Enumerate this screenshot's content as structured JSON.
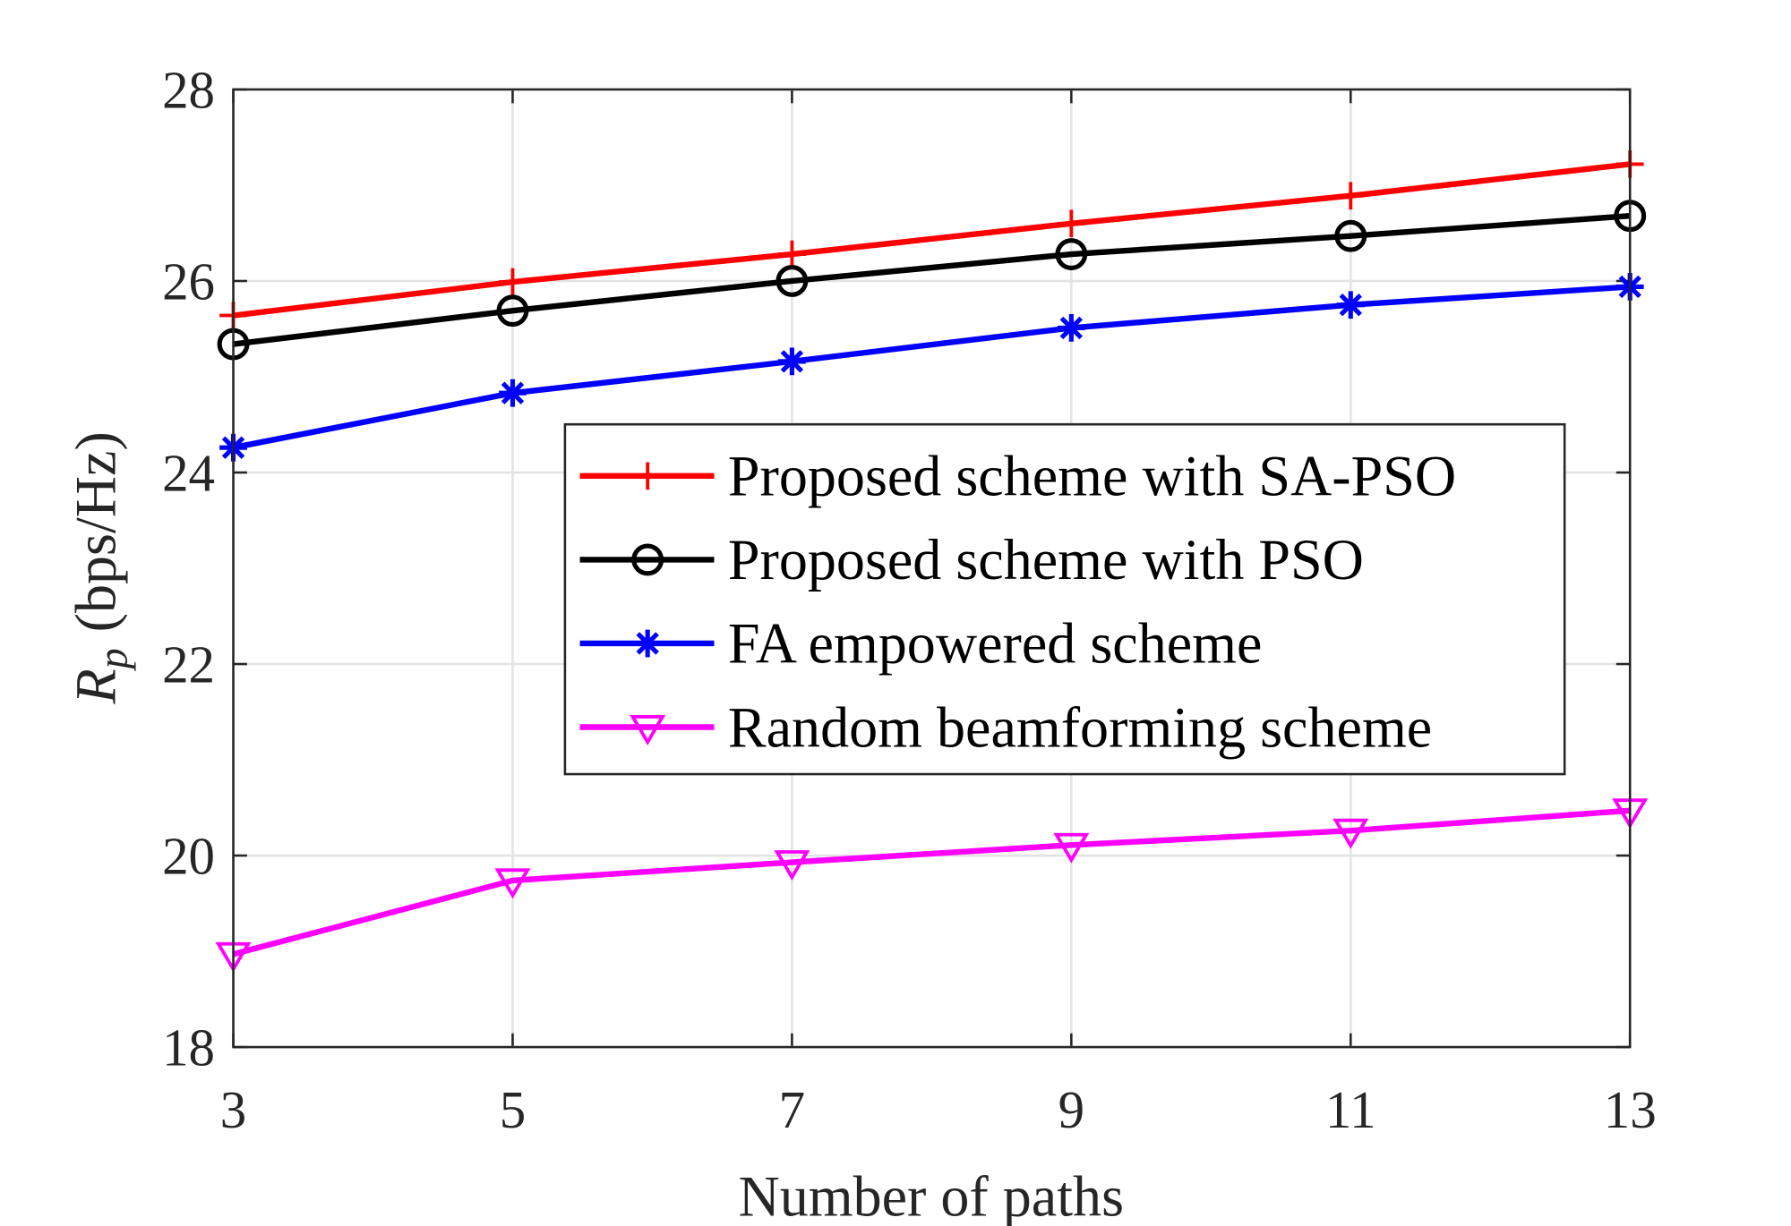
{
  "chart_data": {
    "type": "line",
    "title": "",
    "xlabel": "Number  of  paths",
    "ylabel_var": "R",
    "ylabel_sub": "p",
    "ylabel_unit": "(bps/Hz)",
    "x": [
      3,
      5,
      7,
      9,
      11,
      13
    ],
    "xlim": [
      3,
      13
    ],
    "ylim": [
      18,
      28
    ],
    "xticks": [
      "3",
      "5",
      "7",
      "9",
      "11",
      "13"
    ],
    "yticks": [
      "18",
      "20",
      "22",
      "24",
      "26",
      "28"
    ],
    "grid": true,
    "legend_position": "center-right",
    "series": [
      {
        "name": "Proposed scheme with SA-PSO",
        "color": "#ff0000",
        "marker": "plus",
        "values": [
          25.64,
          25.99,
          26.28,
          26.6,
          26.89,
          27.22
        ]
      },
      {
        "name": "Proposed scheme with PSO",
        "color": "#000000",
        "marker": "circle",
        "values": [
          25.34,
          25.69,
          26.0,
          26.28,
          26.47,
          26.68
        ]
      },
      {
        "name": "FA empowered scheme",
        "color": "#0000ff",
        "marker": "asterisk",
        "values": [
          24.26,
          24.83,
          25.16,
          25.51,
          25.75,
          25.94
        ]
      },
      {
        "name": "Random beamforming scheme",
        "color": "#ff00ff",
        "marker": "triangle-down",
        "values": [
          18.97,
          19.74,
          19.93,
          20.11,
          20.26,
          20.47
        ]
      }
    ]
  }
}
